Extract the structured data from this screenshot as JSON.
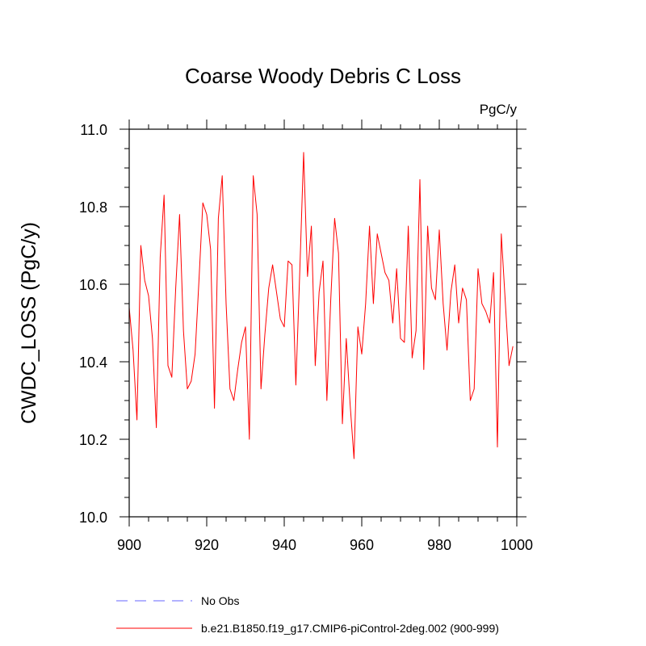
{
  "chart_data": {
    "type": "line",
    "title": "Coarse Woody Debris C Loss",
    "units": "PgC/y",
    "xlabel": "",
    "ylabel": "CWDC_LOSS  (PgC/y)",
    "xlim": [
      900,
      1000
    ],
    "ylim": [
      10.0,
      11.0
    ],
    "x_ticks": [
      900,
      920,
      940,
      960,
      980,
      1000
    ],
    "y_ticks": [
      10.0,
      10.2,
      10.4,
      10.6,
      10.8,
      11.0
    ],
    "y_tick_labels": [
      "10.0",
      "10.2",
      "10.4",
      "10.6",
      "10.8",
      "11.0"
    ],
    "series": [
      {
        "name": "b.e21.B1850.f19_g17.CMIP6-piControl-2deg.002 (900-999)",
        "color": "#ff0000",
        "style": "solid",
        "x_start": 900,
        "values": [
          10.54,
          10.43,
          10.25,
          10.7,
          10.61,
          10.57,
          10.46,
          10.23,
          10.67,
          10.83,
          10.39,
          10.36,
          10.59,
          10.78,
          10.48,
          10.33,
          10.35,
          10.42,
          10.61,
          10.81,
          10.78,
          10.69,
          10.28,
          10.77,
          10.88,
          10.55,
          10.33,
          10.3,
          10.38,
          10.45,
          10.49,
          10.2,
          10.88,
          10.78,
          10.33,
          10.47,
          10.59,
          10.65,
          10.58,
          10.51,
          10.49,
          10.66,
          10.65,
          10.34,
          10.63,
          10.94,
          10.62,
          10.75,
          10.39,
          10.58,
          10.66,
          10.3,
          10.56,
          10.77,
          10.68,
          10.24,
          10.46,
          10.29,
          10.15,
          10.49,
          10.42,
          10.55,
          10.75,
          10.55,
          10.73,
          10.68,
          10.63,
          10.61,
          10.5,
          10.64,
          10.46,
          10.45,
          10.75,
          10.41,
          10.48,
          10.87,
          10.38,
          10.75,
          10.59,
          10.56,
          10.74,
          10.55,
          10.43,
          10.58,
          10.65,
          10.5,
          10.59,
          10.56,
          10.3,
          10.33,
          10.64,
          10.55,
          10.53,
          10.5,
          10.63,
          10.18,
          10.73,
          10.56,
          10.39,
          10.44
        ]
      }
    ],
    "legend": {
      "position": "bottom-left",
      "entries": [
        {
          "label": "No Obs",
          "color": "#0000ff",
          "style": "dashed"
        },
        {
          "label": "b.e21.B1850.f19_g17.CMIP6-piControl-2deg.002 (900-999)",
          "color": "#ff0000",
          "style": "solid"
        }
      ]
    }
  }
}
